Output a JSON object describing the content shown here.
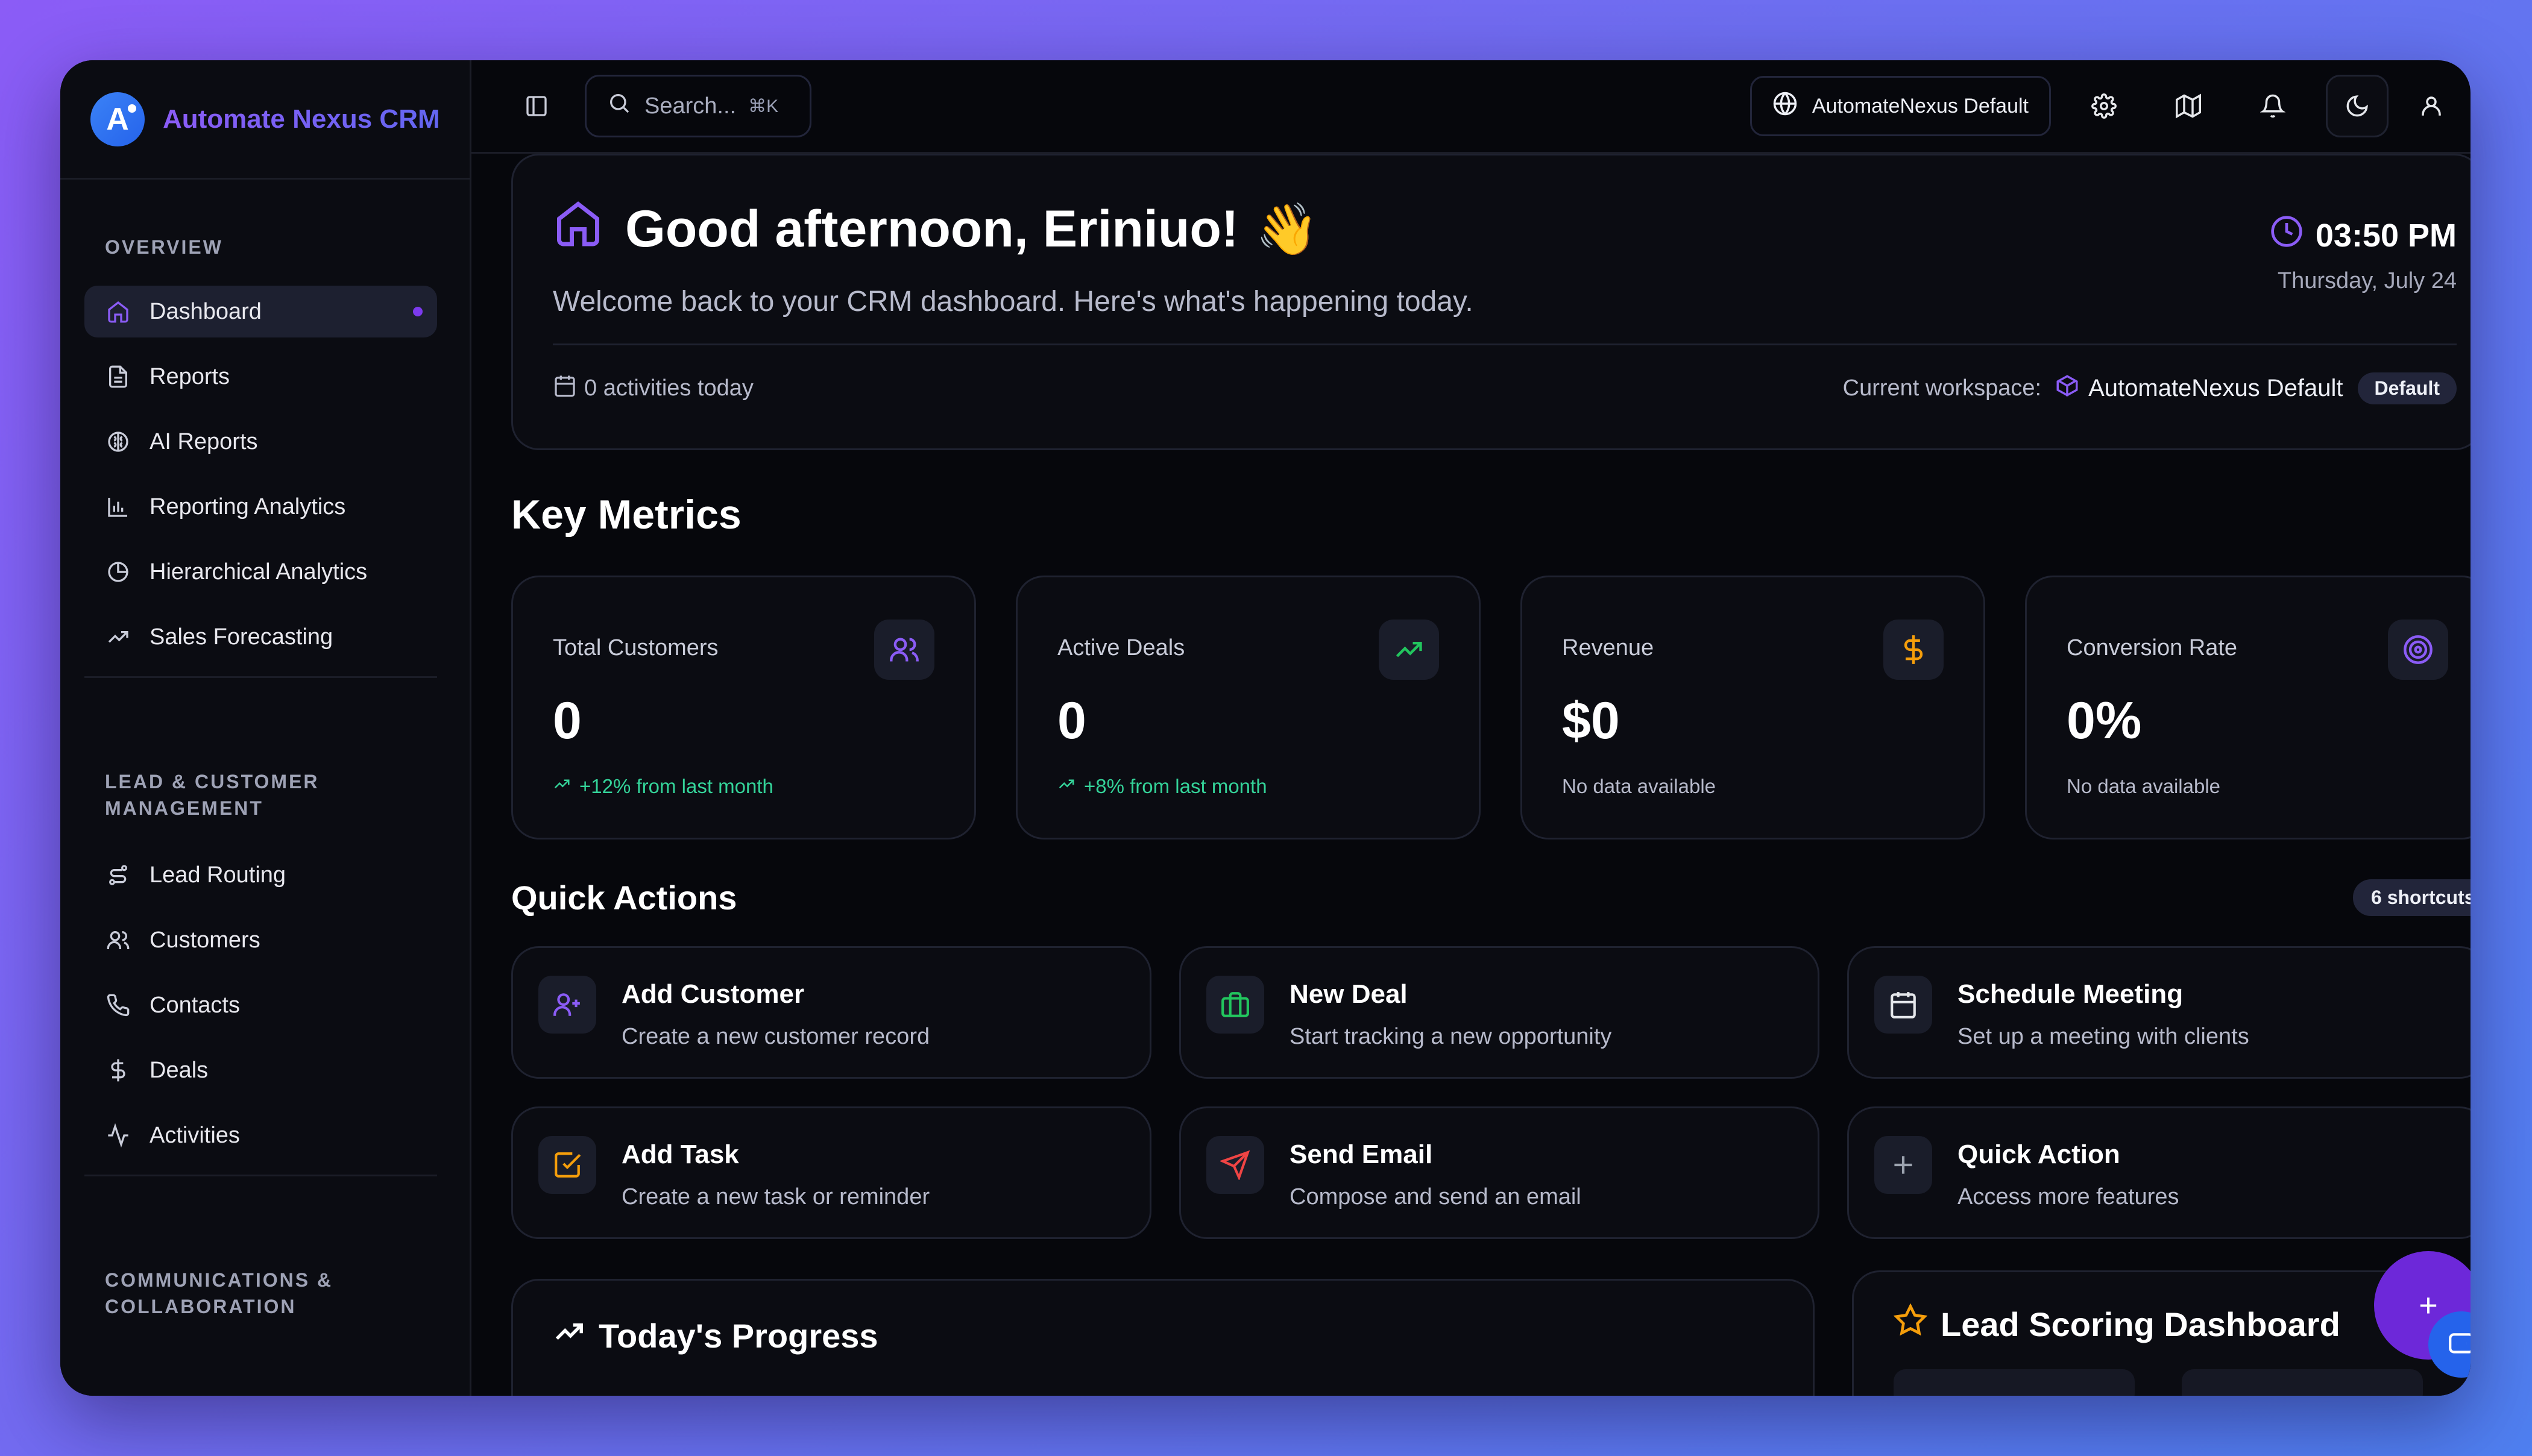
{
  "app": {
    "name": "Automate Nexus CRM",
    "logo_letter": "A"
  },
  "sidebar": {
    "sections": [
      {
        "title": "OVERVIEW",
        "items": [
          {
            "label": "Dashboard",
            "icon": "home-icon",
            "active": true
          },
          {
            "label": "Reports",
            "icon": "file-text-icon"
          },
          {
            "label": "AI Reports",
            "icon": "brain-icon"
          },
          {
            "label": "Reporting Analytics",
            "icon": "bar-chart-icon"
          },
          {
            "label": "Hierarchical Analytics",
            "icon": "pie-chart-icon"
          },
          {
            "label": "Sales Forecasting",
            "icon": "trending-up-icon"
          }
        ]
      },
      {
        "title_line1": "LEAD & CUSTOMER",
        "title_line2": "MANAGEMENT",
        "items": [
          {
            "label": "Lead Routing",
            "icon": "route-icon"
          },
          {
            "label": "Customers",
            "icon": "users-icon"
          },
          {
            "label": "Contacts",
            "icon": "phone-icon"
          },
          {
            "label": "Deals",
            "icon": "dollar-icon"
          },
          {
            "label": "Activities",
            "icon": "activity-icon"
          }
        ]
      },
      {
        "title_line1": "COMMUNICATIONS &",
        "title_line2": "COLLABORATION"
      }
    ]
  },
  "topbar": {
    "search_placeholder": "Search...",
    "search_shortcut": "⌘K",
    "workspace_label": "AutomateNexus Default"
  },
  "greeting": {
    "title": "Good afternoon, Eriniuo!",
    "emoji": "👋",
    "subtitle": "Welcome back to your CRM dashboard. Here's what's happening today.",
    "time": "03:50 PM",
    "date": "Thursday, July 24",
    "activities": "0 activities today",
    "workspace_prefix": "Current workspace:",
    "workspace_name": "AutomateNexus Default",
    "workspace_badge": "Default"
  },
  "metrics": {
    "title": "Key Metrics",
    "cards": [
      {
        "label": "Total Customers",
        "value": "0",
        "trend": "+12% from last month",
        "icon": "users-icon",
        "icon_color": "#8b5cf6"
      },
      {
        "label": "Active Deals",
        "value": "0",
        "trend": "+8% from last month",
        "icon": "trending-up-icon",
        "icon_color": "#22c55e"
      },
      {
        "label": "Revenue",
        "value": "$0",
        "trend": "No data available",
        "icon": "dollar-icon",
        "icon_color": "#f59e0b"
      },
      {
        "label": "Conversion Rate",
        "value": "0%",
        "trend": "No data available",
        "icon": "target-icon",
        "icon_color": "#8b5cf6"
      }
    ]
  },
  "quick_actions": {
    "title": "Quick Actions",
    "badge": "6 shortcuts",
    "items": [
      {
        "title": "Add Customer",
        "desc": "Create a new customer record",
        "icon": "user-plus-icon",
        "color": "#8b5cf6"
      },
      {
        "title": "New Deal",
        "desc": "Start tracking a new opportunity",
        "icon": "briefcase-icon",
        "color": "#22c55e"
      },
      {
        "title": "Schedule Meeting",
        "desc": "Set up a meeting with clients",
        "icon": "calendar-icon",
        "color": "#e5e7eb"
      },
      {
        "title": "Add Task",
        "desc": "Create a new task or reminder",
        "icon": "check-square-icon",
        "color": "#f59e0b"
      },
      {
        "title": "Send Email",
        "desc": "Compose and send an email",
        "icon": "send-icon",
        "color": "#ef4444"
      },
      {
        "title": "Quick Action",
        "desc": "Access more features",
        "icon": "plus-icon",
        "color": "#9ca3af"
      }
    ]
  },
  "progress": {
    "title": "Today's Progress"
  },
  "lead_scoring": {
    "title": "Lead Scoring Dashboard"
  },
  "colors": {
    "accent": "#7c3aed",
    "success": "#34d399",
    "bg": "#06070c",
    "card": "#0b0c12"
  }
}
